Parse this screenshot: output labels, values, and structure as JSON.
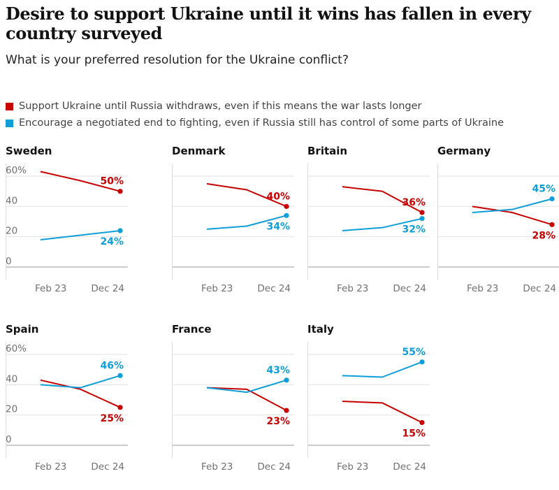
{
  "title": "Desire to support Ukraine until it wins has fallen in every country surveyed",
  "subtitle": "What is your preferred resolution for the Ukraine conflict?",
  "legend": [
    {
      "label": "Support Ukraine until Russia withdraws, even if this means the war lasts longer",
      "color": "#c70000"
    },
    {
      "label": "Encourage a negotiated end to fighting, even if Russia still has control of some parts of Ukraine",
      "color": "#0f9ed8"
    }
  ],
  "chart_data": {
    "type": "line",
    "x": [
      "Feb 23",
      "mid",
      "Dec 24"
    ],
    "x_tick_labels": [
      "Feb 23",
      "Dec 24"
    ],
    "y_ticks": [
      "60%",
      "40",
      "20",
      "0"
    ],
    "ylim": [
      0,
      60
    ],
    "grid": true,
    "colors": {
      "support": "#c70000",
      "negotiate": "#0f9ed8"
    },
    "panels": [
      {
        "country": "Sweden",
        "support": [
          63,
          57,
          50
        ],
        "negotiate": [
          18,
          21,
          24
        ],
        "support_label": "50%",
        "negotiate_label": "24%"
      },
      {
        "country": "Denmark",
        "support": [
          55,
          51,
          40
        ],
        "negotiate": [
          25,
          27,
          34
        ],
        "support_label": "40%",
        "negotiate_label": "34%"
      },
      {
        "country": "Britain",
        "support": [
          53,
          50,
          36
        ],
        "negotiate": [
          24,
          26,
          32
        ],
        "support_label": "36%",
        "negotiate_label": "32%"
      },
      {
        "country": "Germany",
        "support": [
          40,
          36,
          28
        ],
        "negotiate": [
          36,
          38,
          45
        ],
        "support_label": "28%",
        "negotiate_label": "45%"
      },
      {
        "country": "Spain",
        "support": [
          43,
          37,
          25
        ],
        "negotiate": [
          40,
          38,
          46
        ],
        "support_label": "25%",
        "negotiate_label": "46%"
      },
      {
        "country": "France",
        "support": [
          38,
          37,
          23
        ],
        "negotiate": [
          38,
          35,
          43
        ],
        "support_label": "23%",
        "negotiate_label": "43%"
      },
      {
        "country": "Italy",
        "support": [
          29,
          28,
          15
        ],
        "negotiate": [
          46,
          45,
          55
        ],
        "support_label": "15%",
        "negotiate_label": "55%"
      }
    ]
  }
}
